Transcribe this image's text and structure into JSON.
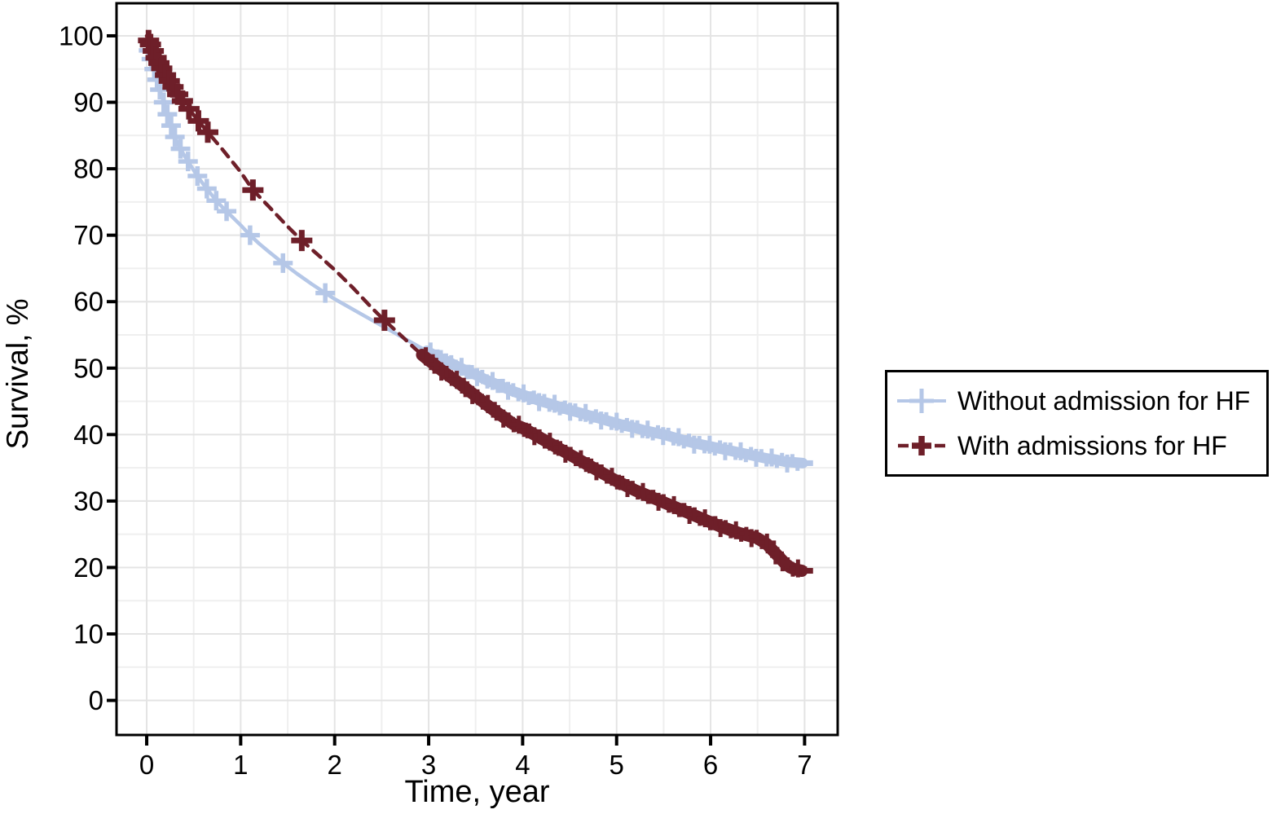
{
  "chart_data": {
    "type": "line",
    "title": "",
    "xlabel": "Time, year",
    "ylabel": "Survival, %",
    "xlim": [
      -0.321,
      7.352
    ],
    "ylim": [
      -5.2,
      104.9
    ],
    "xticks": [
      0,
      1,
      2,
      3,
      4,
      5,
      6,
      7
    ],
    "yticks": [
      0,
      10,
      20,
      30,
      40,
      50,
      60,
      70,
      80,
      90,
      100
    ],
    "x_minor_step": 0.5,
    "y_minor_step": 5,
    "grid": true,
    "legend_position": "right",
    "background_color": "#ffffff",
    "axis_color": "#000000",
    "major_grid_color": "#e4e4e4",
    "minor_grid_color": "#efefef",
    "series": [
      {
        "name": "Without admission for HF",
        "color": "#b5c7e7",
        "line_style": "solid",
        "marker": "plus",
        "band_from": 2.98,
        "band_to": 6.98,
        "tail": [
          [
            6.98,
            35.7
          ],
          [
            7.09,
            35.7
          ]
        ],
        "marker_x": [
          0.02,
          0.05,
          0.08,
          0.11,
          0.14,
          0.18,
          0.22,
          0.26,
          0.3,
          0.36,
          0.44,
          0.54,
          0.64,
          0.74,
          0.85,
          1.1,
          1.45,
          1.9
        ],
        "points": [
          [
            0,
            98.6
          ],
          [
            0.02,
            97.8
          ],
          [
            0.05,
            96.5
          ],
          [
            0.08,
            95.0
          ],
          [
            0.11,
            93.4
          ],
          [
            0.14,
            91.9
          ],
          [
            0.18,
            90.0
          ],
          [
            0.22,
            88.2
          ],
          [
            0.26,
            86.5
          ],
          [
            0.3,
            84.8
          ],
          [
            0.33,
            83.8
          ],
          [
            0.36,
            83.0
          ],
          [
            0.4,
            82.0
          ],
          [
            0.44,
            81.1
          ],
          [
            0.49,
            80.0
          ],
          [
            0.54,
            78.9
          ],
          [
            0.59,
            77.9
          ],
          [
            0.64,
            77.0
          ],
          [
            0.69,
            76.1
          ],
          [
            0.74,
            75.2
          ],
          [
            0.8,
            74.3
          ],
          [
            0.85,
            73.6
          ],
          [
            0.9,
            72.9
          ],
          [
            0.95,
            72.2
          ],
          [
            1.0,
            71.5
          ],
          [
            1.1,
            70.0
          ],
          [
            1.2,
            68.7
          ],
          [
            1.3,
            67.5
          ],
          [
            1.45,
            65.8
          ],
          [
            1.6,
            64.2
          ],
          [
            1.75,
            62.7
          ],
          [
            1.9,
            61.3
          ],
          [
            2.0,
            60.4
          ],
          [
            2.1,
            59.6
          ],
          [
            2.25,
            58.4
          ],
          [
            2.4,
            57.2
          ],
          [
            2.5,
            56.4
          ],
          [
            2.6,
            55.6
          ],
          [
            2.75,
            54.4
          ],
          [
            2.9,
            53.2
          ],
          [
            2.98,
            52.6
          ],
          [
            3.0,
            52.4
          ],
          [
            3.1,
            51.7
          ],
          [
            3.2,
            51.0
          ],
          [
            3.3,
            50.3
          ],
          [
            3.4,
            49.6
          ],
          [
            3.5,
            49.0
          ],
          [
            3.6,
            48.3
          ],
          [
            3.7,
            47.7
          ],
          [
            3.8,
            47.1
          ],
          [
            3.9,
            46.5
          ],
          [
            4.0,
            46.0
          ],
          [
            4.1,
            45.5
          ],
          [
            4.2,
            45.0
          ],
          [
            4.3,
            44.6
          ],
          [
            4.4,
            44.1
          ],
          [
            4.5,
            43.7
          ],
          [
            4.6,
            43.3
          ],
          [
            4.7,
            42.9
          ],
          [
            4.8,
            42.5
          ],
          [
            4.9,
            42.1
          ],
          [
            5.0,
            41.7
          ],
          [
            5.1,
            41.3
          ],
          [
            5.2,
            41.0
          ],
          [
            5.3,
            40.6
          ],
          [
            5.4,
            40.3
          ],
          [
            5.5,
            40.0
          ],
          [
            5.6,
            39.6
          ],
          [
            5.7,
            39.2
          ],
          [
            5.8,
            38.8
          ],
          [
            5.9,
            38.5
          ],
          [
            6.0,
            38.2
          ],
          [
            6.1,
            37.9
          ],
          [
            6.2,
            37.6
          ],
          [
            6.3,
            37.3
          ],
          [
            6.4,
            37.0
          ],
          [
            6.5,
            36.7
          ],
          [
            6.6,
            36.4
          ],
          [
            6.7,
            36.2
          ],
          [
            6.8,
            35.9
          ],
          [
            6.9,
            35.8
          ],
          [
            6.98,
            35.7
          ]
        ]
      },
      {
        "name": "With admissions for HF",
        "color": "#6e1f29",
        "line_style": "dashed",
        "marker": "plus-bold",
        "band_from": 2.93,
        "band_to": 6.97,
        "tail": [
          [
            6.97,
            19.5
          ],
          [
            7.09,
            19.5
          ]
        ],
        "marker_x": [
          0.02,
          0.04,
          0.07,
          0.1,
          0.13,
          0.16,
          0.2,
          0.24,
          0.28,
          0.33,
          0.38,
          0.45,
          0.55,
          0.65,
          1.13,
          1.65,
          2.53
        ],
        "points": [
          [
            0,
            100
          ],
          [
            0.02,
            99.3
          ],
          [
            0.05,
            98.4
          ],
          [
            0.08,
            97.4
          ],
          [
            0.1,
            96.7
          ],
          [
            0.13,
            95.9
          ],
          [
            0.16,
            95.1
          ],
          [
            0.2,
            94.1
          ],
          [
            0.24,
            93.2
          ],
          [
            0.28,
            92.3
          ],
          [
            0.33,
            91.2
          ],
          [
            0.38,
            90.2
          ],
          [
            0.45,
            89.0
          ],
          [
            0.55,
            87.2
          ],
          [
            0.65,
            85.5
          ],
          [
            0.8,
            83.0
          ],
          [
            1.0,
            79.5
          ],
          [
            1.13,
            76.8
          ],
          [
            1.3,
            74.3
          ],
          [
            1.5,
            71.3
          ],
          [
            1.65,
            69.2
          ],
          [
            1.85,
            66.7
          ],
          [
            2.0,
            64.8
          ],
          [
            2.2,
            62.0
          ],
          [
            2.4,
            59.0
          ],
          [
            2.53,
            57.2
          ],
          [
            2.7,
            55.0
          ],
          [
            2.85,
            53.0
          ],
          [
            2.93,
            52.0
          ],
          [
            3.0,
            51.2
          ],
          [
            3.1,
            50.1
          ],
          [
            3.2,
            49.0
          ],
          [
            3.3,
            48.0
          ],
          [
            3.4,
            46.9
          ],
          [
            3.5,
            45.8
          ],
          [
            3.6,
            44.7
          ],
          [
            3.7,
            43.6
          ],
          [
            3.8,
            42.6
          ],
          [
            3.9,
            41.6
          ],
          [
            4.0,
            41.0
          ],
          [
            4.1,
            40.2
          ],
          [
            4.2,
            39.4
          ],
          [
            4.3,
            38.6
          ],
          [
            4.4,
            37.8
          ],
          [
            4.5,
            37.0
          ],
          [
            4.6,
            36.2
          ],
          [
            4.7,
            35.4
          ],
          [
            4.8,
            34.6
          ],
          [
            4.9,
            33.8
          ],
          [
            5.0,
            33.0
          ],
          [
            5.1,
            32.3
          ],
          [
            5.2,
            31.6
          ],
          [
            5.3,
            31.0
          ],
          [
            5.4,
            30.4
          ],
          [
            5.5,
            29.8
          ],
          [
            5.6,
            29.2
          ],
          [
            5.7,
            28.6
          ],
          [
            5.8,
            28.0
          ],
          [
            5.9,
            27.4
          ],
          [
            6.0,
            26.8
          ],
          [
            6.1,
            26.2
          ],
          [
            6.2,
            25.7
          ],
          [
            6.3,
            25.2
          ],
          [
            6.4,
            24.8
          ],
          [
            6.5,
            24.4
          ],
          [
            6.6,
            23.5
          ],
          [
            6.7,
            22.0
          ],
          [
            6.8,
            20.5
          ],
          [
            6.85,
            20.0
          ],
          [
            6.9,
            19.7
          ],
          [
            6.97,
            19.5
          ]
        ]
      }
    ]
  }
}
